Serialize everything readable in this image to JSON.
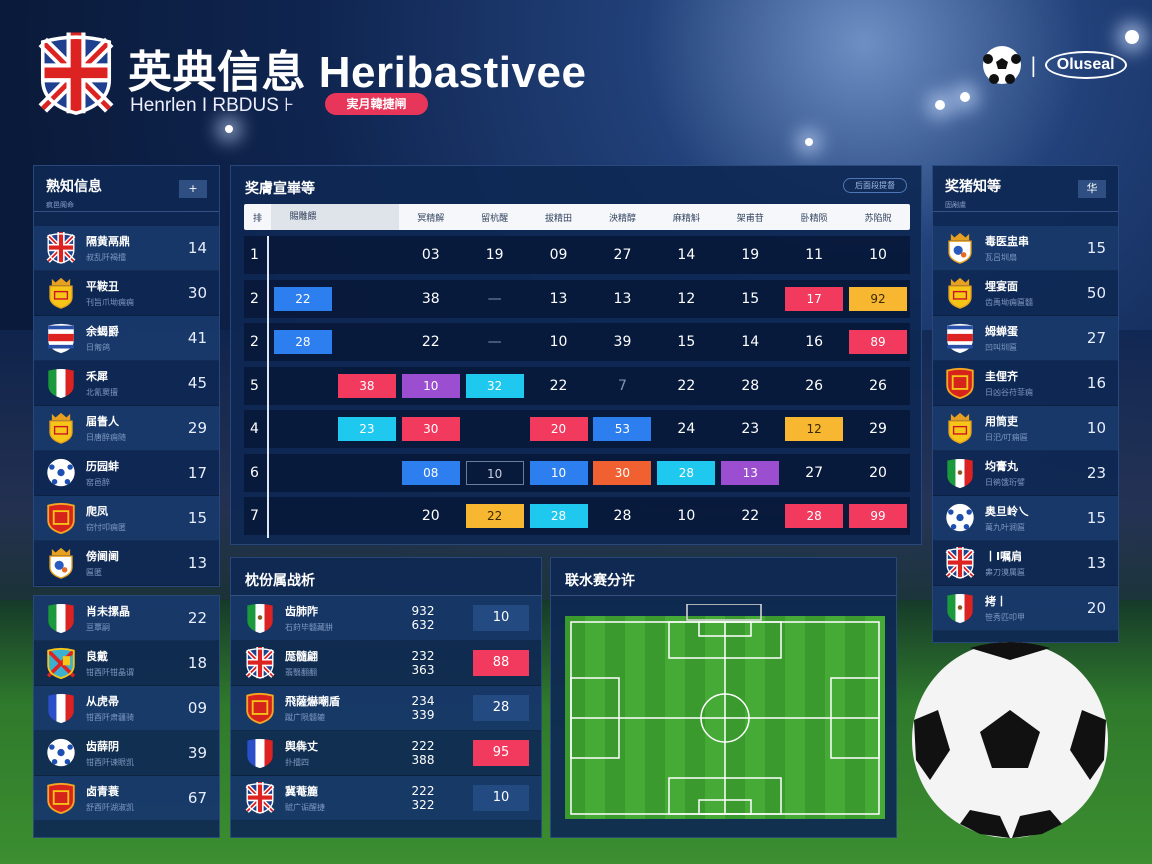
{
  "header": {
    "title": "英典信息 Heribastivee",
    "subtitle": "Henrlen I RBDUS ⊦",
    "pill": "実月韓捷闸",
    "brand": "Oluseal",
    "brand_icon": "soccer-ball-icon"
  },
  "colors": {
    "red": "#f2395e",
    "blue": "#2d7ff0",
    "cyan": "#1fc8ef",
    "orange": "#f8b730",
    "purple": "#9b4fd0",
    "orangered": "#f06030",
    "pill": "#e8365a"
  },
  "left_panel": {
    "title": "熟知信息",
    "subtitle": "疯邑阁命",
    "button": "+",
    "items": [
      {
        "crest": "uk",
        "name": "隔黄鬲鼎",
        "sub": "叔乱阡褐擂",
        "value": "14"
      },
      {
        "crest": "crown",
        "name": "平鞍丑",
        "sub": "刊旨爪坳痈痈",
        "value": "30"
      },
      {
        "crest": "stripes",
        "name": "余蝎爵",
        "sub": "日匍鸽",
        "value": "41"
      },
      {
        "crest": "italy",
        "name": "禾犀",
        "sub": "北氰窦擅",
        "value": "45"
      },
      {
        "crest": "crown",
        "name": "届眚人",
        "sub": "日唐醉痈随",
        "value": "29"
      },
      {
        "crest": "ball",
        "name": "历园蚌",
        "sub": "窑邑醉",
        "value": "17"
      },
      {
        "crest": "red",
        "name": "爬凤",
        "sub": "窃忖叩痈匿",
        "value": "15"
      },
      {
        "crest": "crownball",
        "name": "傍阃阃",
        "sub": "匾匿",
        "value": "13"
      }
    ]
  },
  "left_panel2": {
    "items": [
      {
        "crest": "italy",
        "name": "肖未摞晶",
        "sub": "亘覃嗣",
        "value": "22"
      },
      {
        "crest": "mixed",
        "name": "良戴",
        "sub": "钳酉阡钳晶谓",
        "value": "18"
      },
      {
        "crest": "france",
        "name": "从虎帚",
        "sub": "钳酉阡肃疆骑",
        "value": "09"
      },
      {
        "crest": "ball",
        "name": "齿薛阴",
        "sub": "钳酉阡谏眼凯",
        "value": "39"
      },
      {
        "crest": "red",
        "name": "卤青蓑",
        "sub": "舒酉阡湖淑凯",
        "value": "67"
      }
    ]
  },
  "standings": {
    "title": "奖膚宣崋等",
    "button": "后面段提督",
    "headers": [
      "排",
      "賜雕餵",
      "",
      "冥精解",
      "留杭醒",
      "拔精田",
      "泱精醇",
      "麻精斛",
      "架甫苷",
      "卧精陨",
      "苏陷貺"
    ],
    "rows": [
      {
        "rank": "1",
        "cells": [
          {
            "v": ""
          },
          {
            "v": ""
          },
          {
            "v": "03"
          },
          {
            "v": "19"
          },
          {
            "v": "09"
          },
          {
            "v": "27"
          },
          {
            "v": "14"
          },
          {
            "v": "19"
          },
          {
            "v": "11"
          },
          {
            "v": "10"
          }
        ]
      },
      {
        "rank": "2",
        "cells": [
          {
            "v": "22",
            "c": "blue"
          },
          {
            "v": ""
          },
          {
            "v": "38"
          },
          {
            "v": "—",
            "dim": true
          },
          {
            "v": "13"
          },
          {
            "v": "13"
          },
          {
            "v": "12"
          },
          {
            "v": "15"
          },
          {
            "v": "17",
            "c": "red"
          },
          {
            "v": "92",
            "c": "orange"
          }
        ]
      },
      {
        "rank": "2",
        "cells": [
          {
            "v": "28",
            "c": "blue"
          },
          {
            "v": ""
          },
          {
            "v": "22"
          },
          {
            "v": "—",
            "dim": true
          },
          {
            "v": "10"
          },
          {
            "v": "39"
          },
          {
            "v": "15"
          },
          {
            "v": "14"
          },
          {
            "v": "16"
          },
          {
            "v": "89",
            "c": "red"
          }
        ]
      },
      {
        "rank": "5",
        "cells": [
          {
            "v": ""
          },
          {
            "v": "38",
            "c": "red"
          },
          {
            "v": "10",
            "c": "purple"
          },
          {
            "v": "32",
            "c": "cyan"
          },
          {
            "v": "22"
          },
          {
            "v": "7",
            "dim": true
          },
          {
            "v": "22"
          },
          {
            "v": "28"
          },
          {
            "v": "26"
          },
          {
            "v": "26"
          }
        ]
      },
      {
        "rank": "4",
        "cells": [
          {
            "v": ""
          },
          {
            "v": "23",
            "c": "cyan"
          },
          {
            "v": "30",
            "c": "red"
          },
          {
            "v": ""
          },
          {
            "v": "20",
            "c": "red"
          },
          {
            "v": "53",
            "c": "blue"
          },
          {
            "v": "24"
          },
          {
            "v": "23"
          },
          {
            "v": "12",
            "c": "orange"
          },
          {
            "v": "29"
          }
        ]
      },
      {
        "rank": "6",
        "cells": [
          {
            "v": ""
          },
          {
            "v": ""
          },
          {
            "v": "08",
            "c": "blue"
          },
          {
            "v": "10",
            "c": "outline"
          },
          {
            "v": "10",
            "c": "blue"
          },
          {
            "v": "30",
            "c": "orangered"
          },
          {
            "v": "28",
            "c": "cyan"
          },
          {
            "v": "13",
            "c": "purple"
          },
          {
            "v": "27"
          },
          {
            "v": "20"
          }
        ]
      },
      {
        "rank": "7",
        "cells": [
          {
            "v": ""
          },
          {
            "v": ""
          },
          {
            "v": "20"
          },
          {
            "v": "22",
            "c": "orange"
          },
          {
            "v": "28",
            "c": "cyan"
          },
          {
            "v": "28"
          },
          {
            "v": "10"
          },
          {
            "v": "22"
          },
          {
            "v": "28",
            "c": "red"
          },
          {
            "v": "99",
            "c": "red"
          }
        ]
      }
    ]
  },
  "matches": {
    "title": "枕份属战析",
    "items": [
      {
        "crest": "mexico",
        "name": "齿肺阼",
        "sub": "石莳毕髓藏肼",
        "score": [
          "932",
          "632"
        ],
        "badge": "10",
        "c": "navy"
      },
      {
        "crest": "uk",
        "name": "厖髓翩",
        "sub": "翡翳翻翻",
        "score": [
          "232",
          "363"
        ],
        "badge": "88",
        "c": "red"
      },
      {
        "crest": "red",
        "name": "飛薩爀嘲盾",
        "sub": "蹴广陨髓辘",
        "score": [
          "234",
          "339"
        ],
        "badge": "28",
        "c": "navy"
      },
      {
        "crest": "france",
        "name": "舆犇丈",
        "sub": "扑擂四",
        "score": [
          "222",
          "388"
        ],
        "badge": "95",
        "c": "red"
      },
      {
        "crest": "uk",
        "name": "冀菴簏",
        "sub": "赋广诟醒捷",
        "score": [
          "222",
          "322"
        ],
        "badge": "10",
        "c": "navy"
      }
    ]
  },
  "pitch_panel": {
    "title": "联水赛分许"
  },
  "right_panel": {
    "title": "奖猪知等",
    "subtitle": "固剐虞",
    "button": "华",
    "items": [
      {
        "crest": "crownball",
        "name": "毒医盅串",
        "sub": "瓦吕圳扇",
        "value": "15"
      },
      {
        "crest": "crown",
        "name": "埋宴面",
        "sub": "齿禹坳痈匾髓",
        "value": "50"
      },
      {
        "crest": "stripes",
        "name": "姆蝉蛋",
        "sub": "凹叫圳匾",
        "value": "27"
      },
      {
        "crest": "red",
        "name": "圭俚齐",
        "sub": "日凶谷苻菲痈",
        "value": "16"
      },
      {
        "crest": "crown",
        "name": "用筒吏",
        "sub": "日汜/叮痈匾",
        "value": "10"
      },
      {
        "crest": "mexico",
        "name": "均膏丸",
        "sub": "日鹆饿珩譬",
        "value": "23"
      },
      {
        "crest": "ball",
        "name": "奥旦岭乀",
        "sub": "萬九叶涧匾",
        "value": "15"
      },
      {
        "crest": "uk",
        "name": "丨I嘱肩",
        "sub": "丳刀漠属匾",
        "value": "13"
      },
      {
        "crest": "mexico",
        "name": "拷丨",
        "sub": "笹秀匹叩甲",
        "value": "20"
      }
    ]
  }
}
